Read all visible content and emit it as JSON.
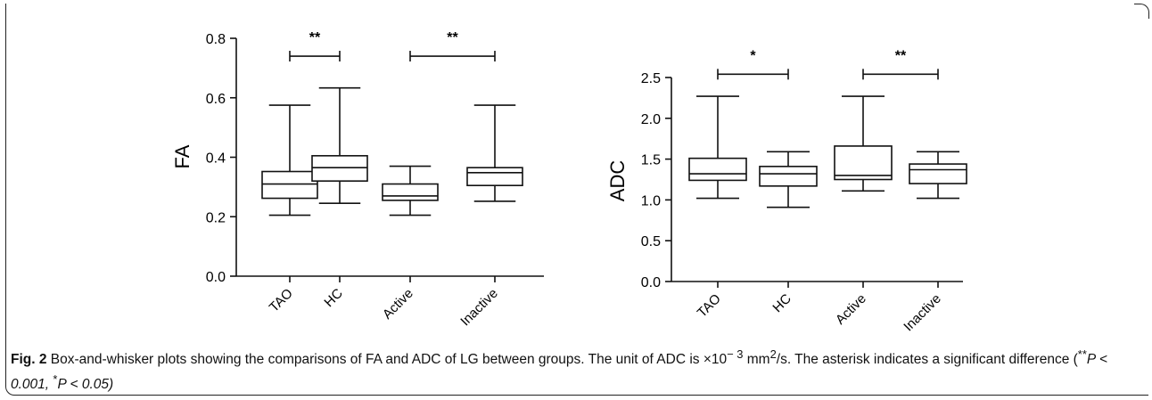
{
  "chart_data": [
    {
      "type": "box",
      "title": "",
      "xlabel": "",
      "ylabel": "FA",
      "ylim": [
        0.0,
        0.8
      ],
      "yticks": [
        "0.0",
        "0.2",
        "0.4",
        "0.6",
        "0.8"
      ],
      "categories": [
        "TAO",
        "HC",
        "Active",
        "Inactive"
      ],
      "boxes": [
        {
          "category": "TAO",
          "min": 0.205,
          "q1": 0.262,
          "median": 0.31,
          "q3": 0.352,
          "max": 0.575
        },
        {
          "category": "HC",
          "min": 0.245,
          "q1": 0.32,
          "median": 0.365,
          "q3": 0.405,
          "max": 0.633
        },
        {
          "category": "Active",
          "min": 0.205,
          "q1": 0.255,
          "median": 0.27,
          "q3": 0.31,
          "max": 0.37
        },
        {
          "category": "Inactive",
          "min": 0.252,
          "q1": 0.305,
          "median": 0.348,
          "q3": 0.365,
          "max": 0.575
        }
      ],
      "significance": [
        {
          "from": "TAO",
          "to": "HC",
          "label": "**",
          "y": 0.74
        },
        {
          "from": "Active",
          "to": "Inactive",
          "label": "**",
          "y": 0.74
        }
      ]
    },
    {
      "type": "box",
      "title": "",
      "xlabel": "",
      "ylabel": "ADC",
      "ylim": [
        0.0,
        2.5
      ],
      "yticks": [
        "0.0",
        "0.5",
        "1.0",
        "1.5",
        "2.0",
        "2.5"
      ],
      "categories": [
        "TAO",
        "HC",
        "Active",
        "Inactive"
      ],
      "boxes": [
        {
          "category": "TAO",
          "min": 1.02,
          "q1": 1.24,
          "median": 1.32,
          "q3": 1.51,
          "max": 2.27
        },
        {
          "category": "HC",
          "min": 0.91,
          "q1": 1.17,
          "median": 1.32,
          "q3": 1.41,
          "max": 1.59
        },
        {
          "category": "Active",
          "min": 1.11,
          "q1": 1.25,
          "median": 1.3,
          "q3": 1.66,
          "max": 2.27
        },
        {
          "category": "Inactive",
          "min": 1.02,
          "q1": 1.2,
          "median": 1.37,
          "q3": 1.44,
          "max": 1.59
        }
      ],
      "significance": [
        {
          "from": "TAO",
          "to": "HC",
          "label": "*",
          "y": 2.54
        },
        {
          "from": "Active",
          "to": "Inactive",
          "label": "**",
          "y": 2.54
        }
      ]
    }
  ],
  "caption": {
    "fig_label": "Fig. 2",
    "text_1": " Box-and-whisker plots showing the comparisons of FA and ADC of LG between groups. The unit of ADC is ×10",
    "exp": "− 3",
    "text_2": " mm",
    "exp2": "2",
    "text_3": "/s. The asterisk indicates a significant difference (",
    "sym1": "**",
    "p1": "P < 0.001, ",
    "sym2": "*",
    "p2": "P < 0.05)"
  }
}
